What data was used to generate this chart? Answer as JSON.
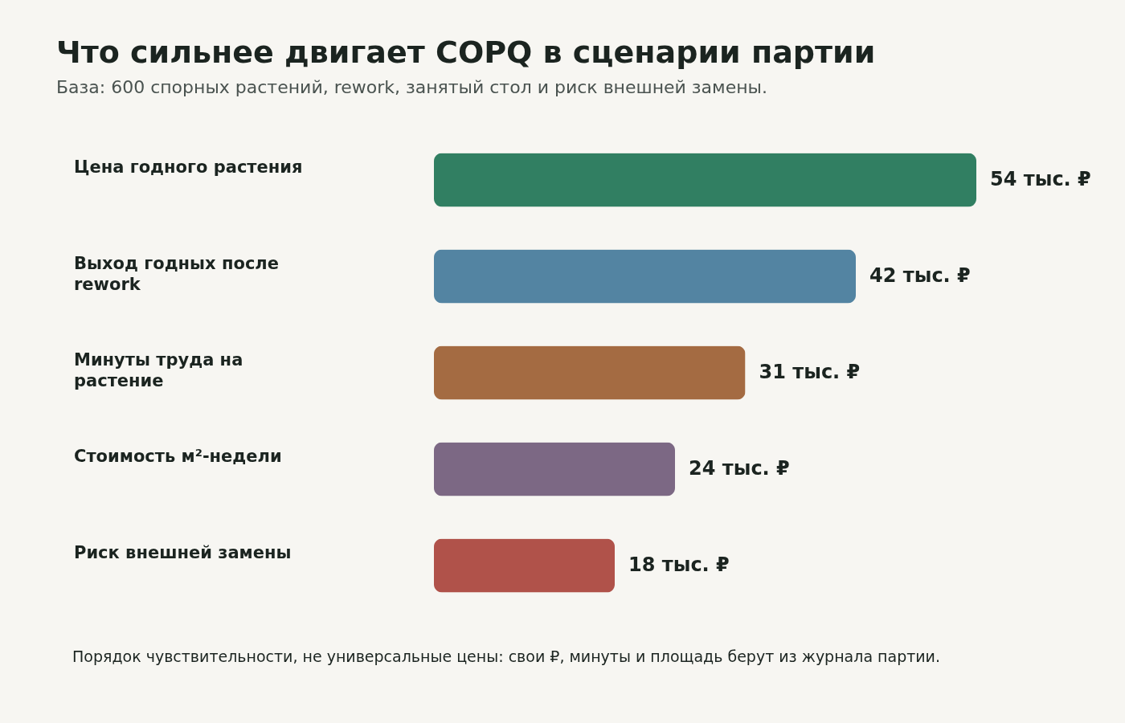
{
  "chart_data": {
    "type": "bar",
    "orientation": "horizontal",
    "title": "Что сильнее двигает COPQ в сценарии партии",
    "subtitle": "База: 600 спорных растений, rework, занятый стол и риск внешней замены.",
    "categories": [
      "Цена годного растения",
      "Выход годных после rework",
      "Минуты труда на растение",
      "Стоимость м²-недели",
      "Риск внешней замены"
    ],
    "values": [
      54,
      42,
      31,
      24,
      18
    ],
    "colors": [
      "#317f62",
      "#5384a2",
      "#a46b42",
      "#7c6884",
      "#b0524a"
    ],
    "value_labels": [
      "54 тыс. ₽",
      "42 тыс. ₽",
      "31 тыс. ₽",
      "24 тыс. ₽",
      "18 тыс. ₽"
    ],
    "annotations": [
      "Порядок чувствительности, не универсальные цены: свои ₽, минуты и площадь берут из журнала партии."
    ]
  }
}
